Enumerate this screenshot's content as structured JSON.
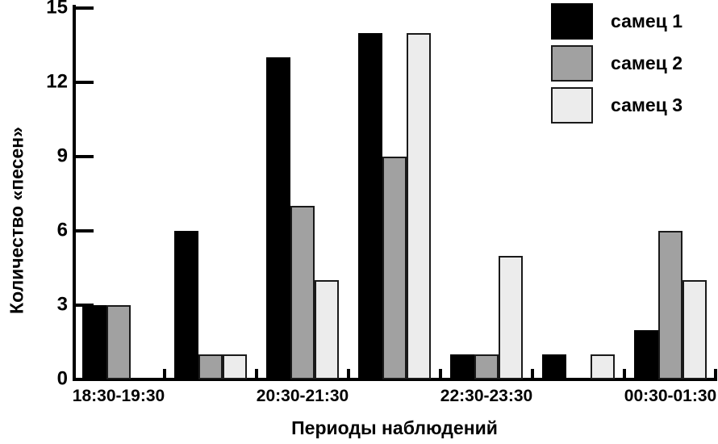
{
  "figure": {
    "background": "#ffffff",
    "axis_color": "#000000",
    "bar_border_color": "#1a1a1a"
  },
  "chart_data": {
    "type": "bar",
    "title": "",
    "ylabel": "Количество «песен»",
    "xlabel": "Периоды наблюдений",
    "ylim": [
      0,
      15
    ],
    "ytick_labels": [
      "0",
      "3",
      "6",
      "9",
      "12",
      "15"
    ],
    "ytick_values": [
      0,
      3,
      6,
      9,
      12,
      15
    ],
    "num_groups": 7,
    "categories": [
      "18:30-19:30",
      "",
      "20:30-21:30",
      "",
      "22:30-23:30",
      "",
      "00:30-01:30"
    ],
    "series": [
      {
        "name": "самец 1",
        "color": "#000000",
        "values": [
          3,
          6,
          13,
          14,
          1,
          1,
          2
        ]
      },
      {
        "name": "самец 2",
        "color": "#a1a1a1",
        "values": [
          3,
          1,
          7,
          9,
          1,
          0,
          6
        ]
      },
      {
        "name": "самец 3",
        "color": "#ececec",
        "values": [
          0,
          1,
          4,
          14,
          5,
          1,
          4
        ]
      }
    ],
    "legend_position": "top-right",
    "grid": false
  }
}
